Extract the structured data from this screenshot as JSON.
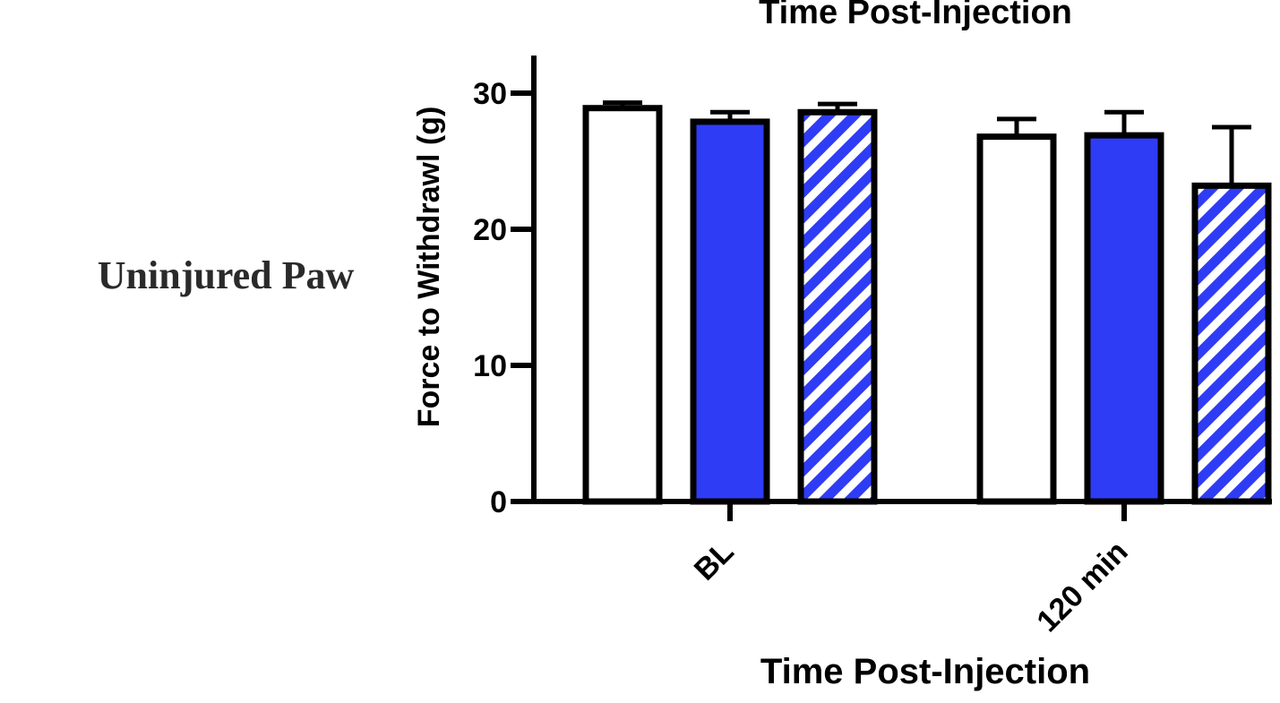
{
  "side_label": "Uninjured Paw",
  "chart_data": {
    "type": "bar",
    "title": "Time Post-Injection",
    "xlabel": "Time Post-Injection",
    "ylabel": "Force to Withdrawl (g)",
    "ylim": [
      0,
      30
    ],
    "yticks": [
      0,
      10,
      20,
      30
    ],
    "categories": [
      "BL",
      "120 min"
    ],
    "grid": false,
    "series": [
      {
        "style": "open",
        "fill": "#ffffff",
        "values": [
          28.9,
          26.8
        ],
        "errors": [
          0.4,
          1.3
        ]
      },
      {
        "style": "solid",
        "fill": "#2f3cf5",
        "values": [
          27.9,
          26.9
        ],
        "errors": [
          0.7,
          1.7
        ]
      },
      {
        "style": "hatched",
        "fill": "#2f3cf5",
        "values": [
          28.6,
          23.2
        ],
        "errors": [
          0.6,
          4.3
        ]
      }
    ]
  }
}
